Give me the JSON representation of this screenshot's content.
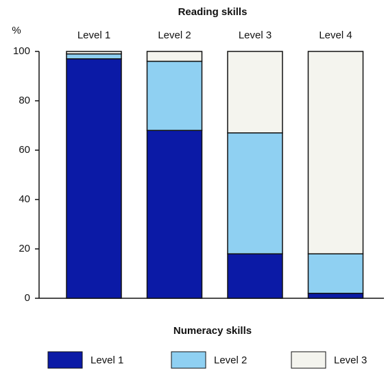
{
  "chart_data": {
    "type": "stacked_bar",
    "title": "Reading skills",
    "y_label": "%",
    "legend_title": "Numeracy skills",
    "categories": [
      "Level 1",
      "Level 2",
      "Level 3",
      "Level 4"
    ],
    "series": [
      {
        "name": "Level 1",
        "color": "#0b1aa6",
        "values": [
          97,
          68,
          18,
          2
        ]
      },
      {
        "name": "Level 2",
        "color": "#8fd0f2",
        "values": [
          2,
          28,
          49,
          16
        ]
      },
      {
        "name": "Level 3",
        "color": "#f4f4ee",
        "values": [
          1,
          4,
          33,
          82
        ]
      }
    ],
    "ylim": [
      0,
      100
    ],
    "yticks": [
      0,
      20,
      40,
      60,
      80,
      100
    ]
  }
}
